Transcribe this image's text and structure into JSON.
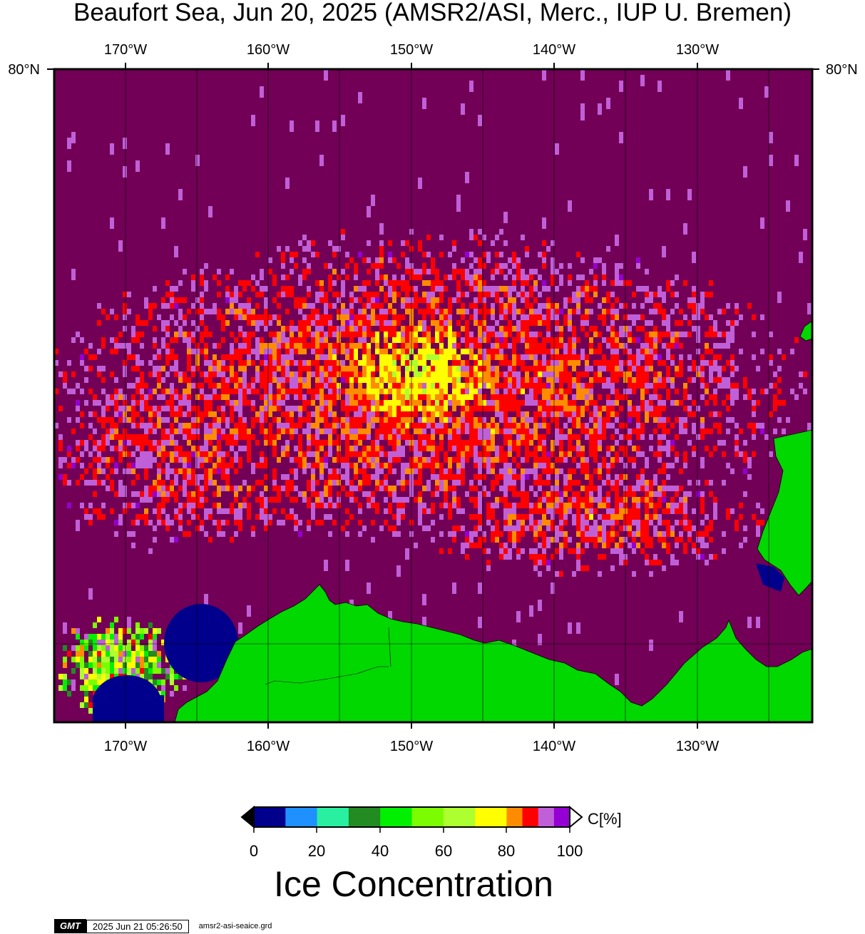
{
  "title": "Beaufort Sea, Jun 20, 2025 (AMSR2/ASI, Merc., IUP U. Bremen)",
  "map": {
    "lon_labels": [
      "170°W",
      "160°W",
      "150°W",
      "140°W",
      "130°W"
    ],
    "lat_label": "80°N",
    "colors": {
      "background_open_water": "#720056",
      "land": "#00d800",
      "coastline": "#000000",
      "gridline": "#000000"
    }
  },
  "colorbar": {
    "unit_label": "C[%]",
    "tick_labels": [
      "0",
      "20",
      "40",
      "60",
      "80",
      "100"
    ],
    "bins": [
      {
        "from": 0,
        "to": 10,
        "color": "#00008c"
      },
      {
        "from": 10,
        "to": 20,
        "color": "#1e90ff"
      },
      {
        "from": 20,
        "to": 30,
        "color": "#28f0a0"
      },
      {
        "from": 30,
        "to": 40,
        "color": "#228b22"
      },
      {
        "from": 40,
        "to": 50,
        "color": "#00f000"
      },
      {
        "from": 50,
        "to": 60,
        "color": "#7cfc00"
      },
      {
        "from": 60,
        "to": 70,
        "color": "#adff2f"
      },
      {
        "from": 70,
        "to": 80,
        "color": "#ffff00"
      },
      {
        "from": 80,
        "to": 85,
        "color": "#ff8c00"
      },
      {
        "from": 85,
        "to": 90,
        "color": "#ff0000"
      },
      {
        "from": 90,
        "to": 95,
        "color": "#c060d8"
      },
      {
        "from": 95,
        "to": 100,
        "color": "#9400d3"
      }
    ],
    "below_color": "#000000",
    "above_color": "#ffffff",
    "title": "Ice Concentration"
  },
  "footer": {
    "logo": "GMT",
    "timestamp": "2025 Jun 21 05:26:50",
    "grid_file": "amsr2-asi-seaice.grd"
  }
}
